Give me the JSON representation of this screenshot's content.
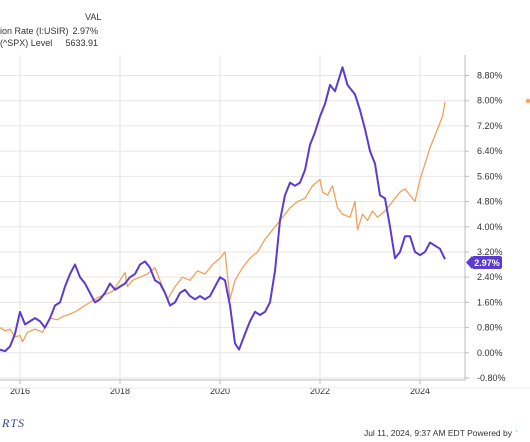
{
  "legend": {
    "header": "VAL",
    "rows": [
      {
        "label": "ion Rate (I:USIR)",
        "value": "2.97%"
      },
      {
        "label": "(^SPX) Level",
        "value": "5633.91"
      }
    ]
  },
  "footer": {
    "logo": "RTS",
    "timestamp": "Jul 11, 2024, 9:37 AM EDT Powered by"
  },
  "colors": {
    "inflation": "#5b3bd1",
    "spx": "#f2a15a",
    "grid": "#e6e6e6",
    "axis": "#bdbdbd"
  },
  "chart_data": {
    "type": "line",
    "x_unit": "year",
    "xlim": [
      2015.6,
      2024.9
    ],
    "ylim": [
      -0.8,
      9.6
    ],
    "y_ticks": [
      "8.80%",
      "8.00%",
      "7.20%",
      "6.40%",
      "5.60%",
      "4.80%",
      "4.00%",
      "3.20%",
      "2.40%",
      "1.60%",
      "0.80%",
      "0.00%",
      "-0.80%"
    ],
    "x_ticks": [
      "2016",
      "2018",
      "2020",
      "2022",
      "2024"
    ],
    "last_value_badge": "2.97%",
    "series": [
      {
        "name": "ion Rate (I:USIR)",
        "axis": "left-percent",
        "color": "#5b3bd1",
        "points": [
          [
            2015.6,
            0.1
          ],
          [
            2015.7,
            0.05
          ],
          [
            2015.8,
            0.2
          ],
          [
            2015.9,
            0.6
          ],
          [
            2016.0,
            1.3
          ],
          [
            2016.1,
            0.9
          ],
          [
            2016.2,
            1.0
          ],
          [
            2016.3,
            1.1
          ],
          [
            2016.4,
            1.0
          ],
          [
            2016.5,
            0.8
          ],
          [
            2016.6,
            1.1
          ],
          [
            2016.7,
            1.5
          ],
          [
            2016.8,
            1.6
          ],
          [
            2016.9,
            2.1
          ],
          [
            2017.0,
            2.5
          ],
          [
            2017.1,
            2.8
          ],
          [
            2017.2,
            2.4
          ],
          [
            2017.3,
            2.2
          ],
          [
            2017.4,
            1.9
          ],
          [
            2017.5,
            1.6
          ],
          [
            2017.6,
            1.7
          ],
          [
            2017.7,
            1.9
          ],
          [
            2017.8,
            2.2
          ],
          [
            2017.9,
            2.0
          ],
          [
            2018.0,
            2.1
          ],
          [
            2018.1,
            2.2
          ],
          [
            2018.2,
            2.4
          ],
          [
            2018.3,
            2.5
          ],
          [
            2018.4,
            2.8
          ],
          [
            2018.5,
            2.9
          ],
          [
            2018.6,
            2.7
          ],
          [
            2018.7,
            2.3
          ],
          [
            2018.8,
            2.2
          ],
          [
            2018.9,
            1.9
          ],
          [
            2019.0,
            1.5
          ],
          [
            2019.1,
            1.6
          ],
          [
            2019.2,
            1.9
          ],
          [
            2019.3,
            2.0
          ],
          [
            2019.4,
            1.8
          ],
          [
            2019.5,
            1.7
          ],
          [
            2019.6,
            1.8
          ],
          [
            2019.7,
            1.7
          ],
          [
            2019.8,
            1.8
          ],
          [
            2019.9,
            2.1
          ],
          [
            2020.0,
            2.4
          ],
          [
            2020.1,
            2.3
          ],
          [
            2020.2,
            1.5
          ],
          [
            2020.3,
            0.3
          ],
          [
            2020.38,
            0.1
          ],
          [
            2020.5,
            0.6
          ],
          [
            2020.6,
            1.0
          ],
          [
            2020.7,
            1.3
          ],
          [
            2020.8,
            1.2
          ],
          [
            2020.9,
            1.3
          ],
          [
            2021.0,
            1.6
          ],
          [
            2021.1,
            2.6
          ],
          [
            2021.2,
            4.2
          ],
          [
            2021.3,
            5.0
          ],
          [
            2021.4,
            5.4
          ],
          [
            2021.5,
            5.3
          ],
          [
            2021.6,
            5.4
          ],
          [
            2021.7,
            5.8
          ],
          [
            2021.8,
            6.6
          ],
          [
            2021.9,
            7.0
          ],
          [
            2022.0,
            7.5
          ],
          [
            2022.1,
            7.9
          ],
          [
            2022.2,
            8.5
          ],
          [
            2022.3,
            8.3
          ],
          [
            2022.45,
            9.06
          ],
          [
            2022.55,
            8.5
          ],
          [
            2022.7,
            8.2
          ],
          [
            2022.8,
            7.7
          ],
          [
            2022.9,
            7.1
          ],
          [
            2023.0,
            6.4
          ],
          [
            2023.1,
            6.0
          ],
          [
            2023.2,
            5.0
          ],
          [
            2023.3,
            4.9
          ],
          [
            2023.4,
            4.0
          ],
          [
            2023.5,
            3.0
          ],
          [
            2023.6,
            3.2
          ],
          [
            2023.7,
            3.7
          ],
          [
            2023.8,
            3.7
          ],
          [
            2023.9,
            3.2
          ],
          [
            2024.0,
            3.1
          ],
          [
            2024.1,
            3.2
          ],
          [
            2024.2,
            3.5
          ],
          [
            2024.3,
            3.4
          ],
          [
            2024.4,
            3.3
          ],
          [
            2024.5,
            2.97
          ]
        ]
      },
      {
        "name": "(^SPX) Level",
        "axis": "left-percent",
        "color": "#f2a15a",
        "points": [
          [
            2015.6,
            0.8
          ],
          [
            2015.7,
            0.7
          ],
          [
            2015.8,
            0.75
          ],
          [
            2015.9,
            0.5
          ],
          [
            2016.0,
            0.55
          ],
          [
            2016.05,
            0.35
          ],
          [
            2016.15,
            0.65
          ],
          [
            2016.3,
            0.75
          ],
          [
            2016.45,
            0.65
          ],
          [
            2016.6,
            1.1
          ],
          [
            2016.75,
            1.05
          ],
          [
            2016.85,
            1.15
          ],
          [
            2016.95,
            1.2
          ],
          [
            2017.1,
            1.3
          ],
          [
            2017.25,
            1.45
          ],
          [
            2017.4,
            1.6
          ],
          [
            2017.55,
            1.75
          ],
          [
            2017.7,
            1.85
          ],
          [
            2017.85,
            1.95
          ],
          [
            2018.0,
            2.3
          ],
          [
            2018.1,
            2.55
          ],
          [
            2018.15,
            2.1
          ],
          [
            2018.25,
            2.3
          ],
          [
            2018.4,
            2.4
          ],
          [
            2018.55,
            2.5
          ],
          [
            2018.7,
            2.7
          ],
          [
            2018.8,
            2.3
          ],
          [
            2018.95,
            1.7
          ],
          [
            2019.1,
            2.1
          ],
          [
            2019.25,
            2.4
          ],
          [
            2019.4,
            2.3
          ],
          [
            2019.55,
            2.6
          ],
          [
            2019.7,
            2.5
          ],
          [
            2019.85,
            2.8
          ],
          [
            2020.0,
            3.0
          ],
          [
            2020.1,
            3.2
          ],
          [
            2020.2,
            1.7
          ],
          [
            2020.3,
            2.3
          ],
          [
            2020.45,
            2.7
          ],
          [
            2020.6,
            3.0
          ],
          [
            2020.75,
            3.2
          ],
          [
            2020.9,
            3.6
          ],
          [
            2021.0,
            3.8
          ],
          [
            2021.1,
            4.0
          ],
          [
            2021.25,
            4.3
          ],
          [
            2021.4,
            4.6
          ],
          [
            2021.55,
            4.8
          ],
          [
            2021.7,
            4.9
          ],
          [
            2021.85,
            5.3
          ],
          [
            2022.0,
            5.5
          ],
          [
            2022.05,
            5.1
          ],
          [
            2022.15,
            5.0
          ],
          [
            2022.25,
            5.3
          ],
          [
            2022.35,
            4.6
          ],
          [
            2022.45,
            4.4
          ],
          [
            2022.6,
            4.3
          ],
          [
            2022.7,
            4.8
          ],
          [
            2022.75,
            3.9
          ],
          [
            2022.85,
            4.4
          ],
          [
            2022.95,
            4.2
          ],
          [
            2023.05,
            4.5
          ],
          [
            2023.15,
            4.3
          ],
          [
            2023.3,
            4.5
          ],
          [
            2023.45,
            4.8
          ],
          [
            2023.6,
            5.1
          ],
          [
            2023.7,
            5.2
          ],
          [
            2023.8,
            5.0
          ],
          [
            2023.9,
            4.8
          ],
          [
            2024.0,
            5.5
          ],
          [
            2024.1,
            6.0
          ],
          [
            2024.2,
            6.5
          ],
          [
            2024.3,
            6.9
          ],
          [
            2024.4,
            7.3
          ],
          [
            2024.45,
            7.5
          ],
          [
            2024.5,
            7.95
          ]
        ]
      }
    ]
  }
}
